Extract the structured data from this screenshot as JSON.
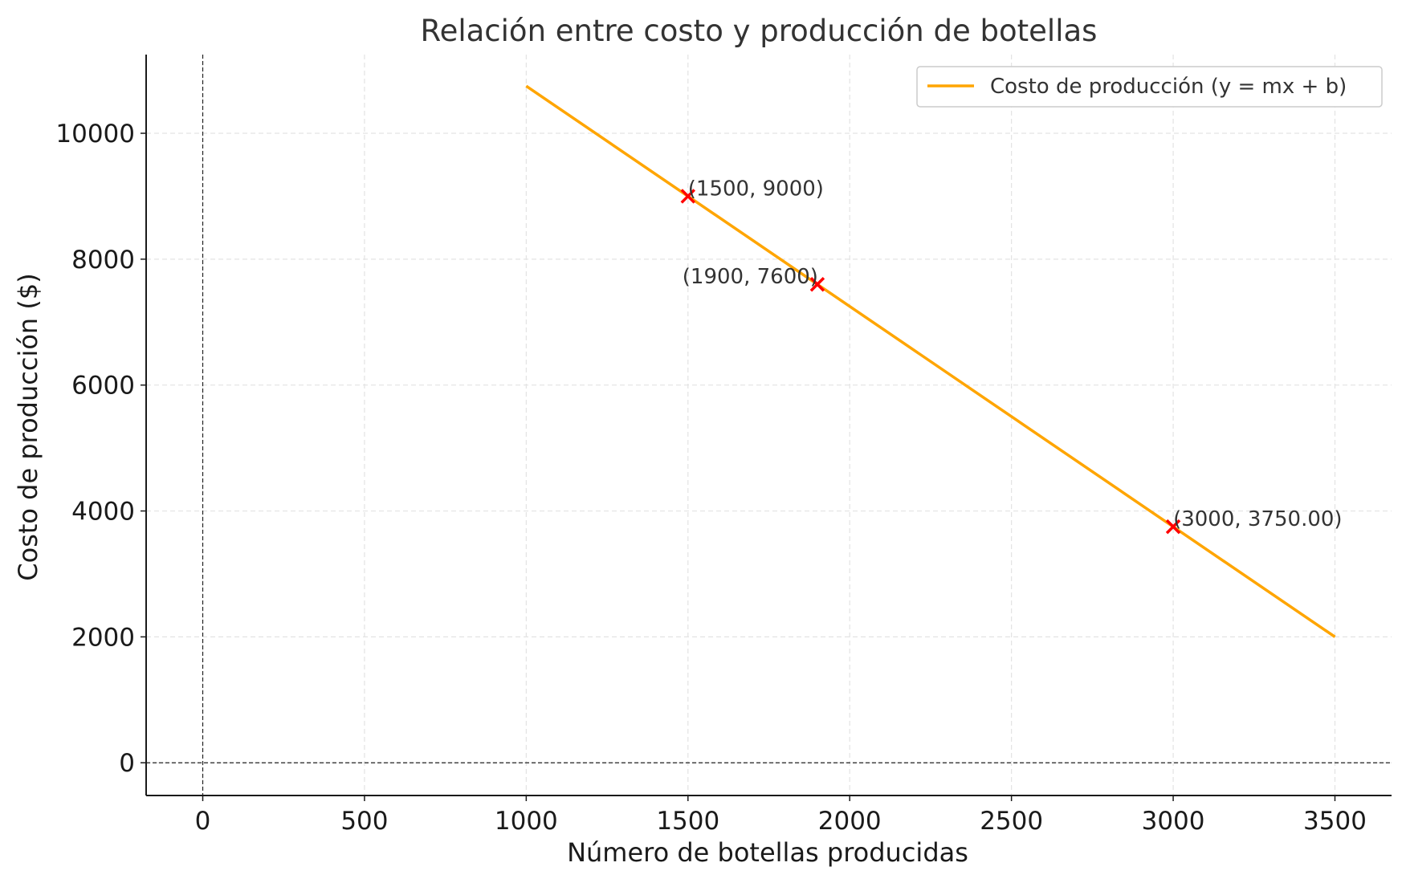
{
  "chart_data": {
    "type": "line",
    "title": "Relación entre costo y producción de botellas",
    "xlabel": "Número de botellas producidas",
    "ylabel": "Costo de producción ($)",
    "xlim": [
      -175,
      3675
    ],
    "ylim": [
      -520,
      11250
    ],
    "xticks": [
      0,
      500,
      1000,
      1500,
      2000,
      2500,
      3000,
      3500
    ],
    "yticks": [
      0,
      2000,
      4000,
      6000,
      8000,
      10000
    ],
    "grid": true,
    "legend_position": "top-right",
    "reference_lines": {
      "x_zero": true,
      "y_zero": true
    },
    "series": [
      {
        "name": "Costo de producción (y = mx + b)",
        "color": "#FFA500",
        "x": [
          1000,
          3500
        ],
        "y": [
          10750,
          2000
        ]
      }
    ],
    "points": [
      {
        "x": 1500,
        "y": 9000,
        "label": "(1500, 9000)",
        "label_side": "right"
      },
      {
        "x": 1900,
        "y": 7600,
        "label": "(1900, 7600)",
        "label_side": "left"
      },
      {
        "x": 3000,
        "y": 3750,
        "label": "(3000, 3750.00)",
        "label_side": "right"
      }
    ],
    "point_color": "#FF0000",
    "point_marker": "x"
  }
}
